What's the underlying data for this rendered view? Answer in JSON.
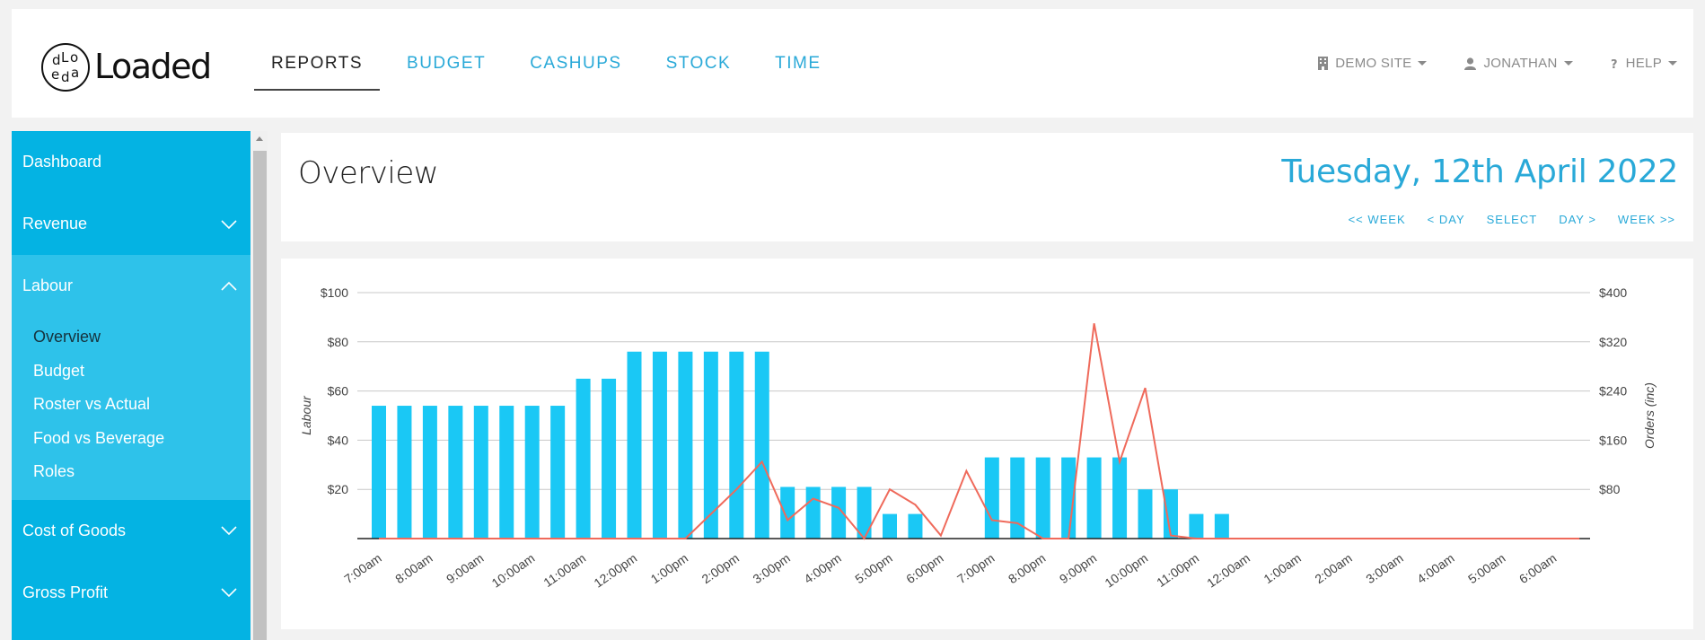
{
  "brand": {
    "name": "Loaded",
    "mark_letters": [
      "d",
      "L",
      "o",
      "e",
      "d",
      "a"
    ]
  },
  "nav": [
    {
      "label": "REPORTS",
      "active": true
    },
    {
      "label": "BUDGET",
      "active": false
    },
    {
      "label": "CASHUPS",
      "active": false
    },
    {
      "label": "STOCK",
      "active": false
    },
    {
      "label": "TIME",
      "active": false
    }
  ],
  "topright": {
    "site": {
      "label": "DEMO SITE",
      "icon": "building-icon"
    },
    "user": {
      "label": "JONATHAN",
      "icon": "user-icon"
    },
    "help": {
      "label": "HELP",
      "icon": "question-icon"
    }
  },
  "sidebar": {
    "dashboard": "Dashboard",
    "revenue": "Revenue",
    "labour": "Labour",
    "labour_items": [
      "Overview",
      "Budget",
      "Roster vs Actual",
      "Food vs Beverage",
      "Roles"
    ],
    "cost_of_goods": "Cost of Goods",
    "gross_profit": "Gross Profit"
  },
  "header": {
    "title": "Overview",
    "date": "Tuesday, 12th April 2022",
    "date_nav": [
      "<< WEEK",
      "< DAY",
      "SELECT",
      "DAY >",
      "WEEK >>"
    ]
  },
  "colors": {
    "accent": "#04b3e3",
    "link": "#29a9d8",
    "bar": "#1ac8f5",
    "line": "#ef6a5b"
  },
  "chart_data": {
    "type": "bar",
    "categories": [
      "7:00am",
      "7:30am",
      "8:00am",
      "8:30am",
      "9:00am",
      "9:30am",
      "10:00am",
      "10:30am",
      "11:00am",
      "11:30am",
      "12:00pm",
      "12:30pm",
      "1:00pm",
      "1:30pm",
      "2:00pm",
      "2:30pm",
      "3:00pm",
      "3:30pm",
      "4:00pm",
      "4:30pm",
      "5:00pm",
      "5:30pm",
      "6:00pm",
      "6:30pm",
      "7:00pm",
      "7:30pm",
      "8:00pm",
      "8:30pm",
      "9:00pm",
      "9:30pm",
      "10:00pm",
      "10:30pm",
      "11:00pm",
      "11:30pm",
      "12:00am",
      "12:30am",
      "1:00am",
      "1:30am",
      "2:00am",
      "2:30am",
      "3:00am",
      "3:30am",
      "4:00am",
      "4:30am",
      "5:00am",
      "5:30am",
      "6:00am",
      "6:30am"
    ],
    "tick_labels": [
      "7:00am",
      "8:00am",
      "9:00am",
      "10:00am",
      "11:00am",
      "12:00pm",
      "1:00pm",
      "2:00pm",
      "3:00pm",
      "4:00pm",
      "5:00pm",
      "6:00pm",
      "7:00pm",
      "8:00pm",
      "9:00pm",
      "10:00pm",
      "11:00pm",
      "12:00am",
      "1:00am",
      "2:00am",
      "3:00am",
      "4:00am",
      "5:00am",
      "6:00am"
    ],
    "series": [
      {
        "axis": "left",
        "type": "bar",
        "values": [
          54,
          54,
          54,
          54,
          54,
          54,
          54,
          54,
          65,
          65,
          76,
          76,
          76,
          76,
          76,
          76,
          21,
          21,
          21,
          21,
          10,
          10,
          0,
          0,
          33,
          33,
          33,
          33,
          33,
          33,
          20,
          20,
          10,
          10,
          0,
          0,
          0,
          0,
          0,
          0,
          0,
          0,
          0,
          0,
          0,
          0,
          0,
          0
        ]
      },
      {
        "axis": "right",
        "type": "line",
        "values": [
          0,
          0,
          0,
          0,
          0,
          0,
          0,
          0,
          0,
          0,
          0,
          0,
          0,
          40,
          80,
          125,
          30,
          65,
          50,
          0,
          80,
          55,
          5,
          110,
          30,
          25,
          0,
          0,
          350,
          125,
          245,
          5,
          0,
          0,
          0,
          0,
          0,
          0,
          0,
          0,
          0,
          0,
          0,
          0,
          0,
          0,
          0,
          0
        ]
      }
    ],
    "ylabel": "Labour",
    "y2label": "Orders (inc)",
    "ylim": [
      0,
      100
    ],
    "y2lim": [
      0,
      400
    ],
    "yticks": [
      "$20",
      "$40",
      "$60",
      "$80",
      "$100"
    ],
    "y2ticks": [
      "$80",
      "$160",
      "$240",
      "$320",
      "$400"
    ],
    "grid": true
  }
}
